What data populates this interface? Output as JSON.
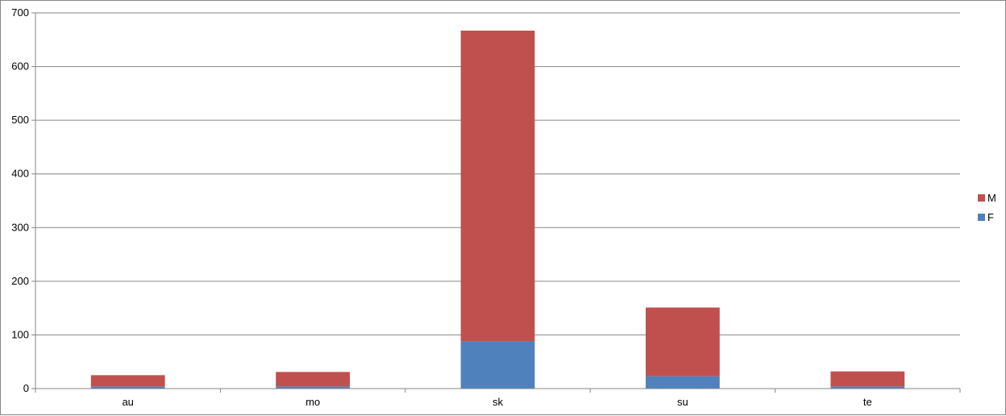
{
  "chart_data": {
    "type": "bar",
    "stacked": true,
    "categories": [
      "au",
      "mo",
      "sk",
      "su",
      "te"
    ],
    "series": [
      {
        "name": "F",
        "color": "#4f81bd",
        "values": [
          4,
          4,
          88,
          23,
          4
        ]
      },
      {
        "name": "M",
        "color": "#c0504d",
        "values": [
          21,
          27,
          579,
          128,
          28
        ]
      }
    ],
    "yticks": [
      "0",
      "100",
      "200",
      "300",
      "400",
      "500",
      "600",
      "700"
    ],
    "ylim": [
      0,
      700
    ],
    "grid": true,
    "legend_position": "right",
    "legend": [
      {
        "label": "M",
        "color": "#c0504d"
      },
      {
        "label": "F",
        "color": "#4f81bd"
      }
    ]
  }
}
